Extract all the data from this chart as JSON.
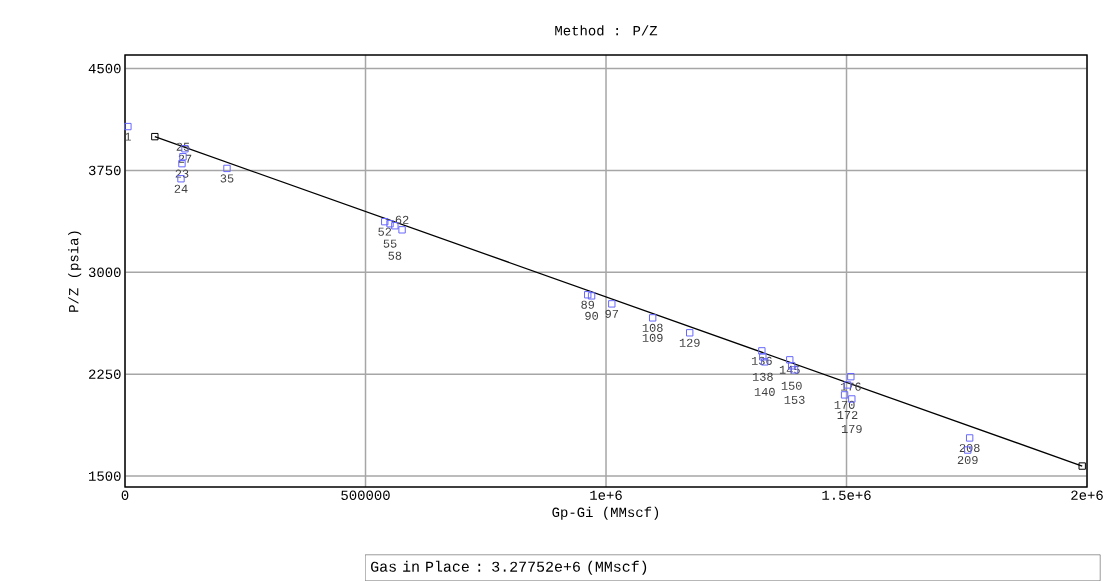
{
  "chart_data": {
    "type": "scatter",
    "title": "Method : P/Z",
    "xlabel": "Gp-Gi (MMscf)",
    "ylabel": "P/Z (psia)",
    "xlim": [
      0,
      2000000
    ],
    "ylim": [
      1420,
      4600
    ],
    "xticks": [
      0,
      500000,
      {
        "value": 1000000,
        "label": "1e+6"
      },
      {
        "value": 1500000,
        "label": "1.5e+6"
      },
      {
        "value": 2000000,
        "label": "2e+6"
      }
    ],
    "yticks": [
      1500,
      2250,
      3000,
      3750,
      4500
    ],
    "grid": true,
    "marker": "square",
    "series": [
      {
        "color": "#6666ff",
        "x": [
          6000,
          116400,
          118400,
          120500,
          124700,
          212000,
          540000,
          551000,
          561000,
          576000,
          962000,
          970000,
          1012000,
          1097000,
          1174000,
          1324000,
          1326000,
          1330000,
          1382000,
          1386000,
          1392000,
          1496000,
          1502000,
          1509000,
          1511000,
          1752000,
          1756000
        ],
        "values": [
          4073,
          3689,
          3800,
          3851,
          3910,
          3765,
          3373,
          3358,
          3343,
          3313,
          2835,
          2827,
          2768,
          2665,
          2555,
          2422,
          2378,
          2341,
          2356,
          2312,
          2282,
          2098,
          2171,
          2232,
          2068,
          1692,
          1781
        ]
      },
      {
        "type": "line",
        "color": "#000000",
        "x": [
          62000,
          1990000
        ],
        "values": [
          3999,
          1574
        ]
      }
    ],
    "annotations": [
      {
        "text": "1",
        "x": 6000,
        "y": 4073
      },
      {
        "text": "24",
        "x": 116400,
        "y": 3689
      },
      {
        "text": "23",
        "x": 118400,
        "y": 3800
      },
      {
        "text": "25",
        "x": 120500,
        "y": 3851
      },
      {
        "text": "27",
        "x": 124700,
        "y": 3910
      },
      {
        "text": "35",
        "x": 212000,
        "y": 3765
      },
      {
        "text": "52",
        "x": 540000,
        "y": 3373
      },
      {
        "text": "55",
        "x": 551000,
        "y": 3358
      },
      {
        "text": "58",
        "x": 561000,
        "y": 3343
      },
      {
        "text": "62",
        "x": 576000,
        "y": 3313
      },
      {
        "text": "89",
        "x": 962000,
        "y": 2835
      },
      {
        "text": "90",
        "x": 970000,
        "y": 2827
      },
      {
        "text": "97",
        "x": 1012000,
        "y": 2768
      },
      {
        "text": "108",
        "x": 1097000,
        "y": 2665
      },
      {
        "text": "109",
        "x": 1097000,
        "y": 2665
      },
      {
        "text": "129",
        "x": 1174000,
        "y": 2555
      },
      {
        "text": "136",
        "x": 1324000,
        "y": 2422
      },
      {
        "text": "138",
        "x": 1326000,
        "y": 2378
      },
      {
        "text": "140",
        "x": 1330000,
        "y": 2341
      },
      {
        "text": "145",
        "x": 1382000,
        "y": 2356
      },
      {
        "text": "150",
        "x": 1386000,
        "y": 2312
      },
      {
        "text": "153",
        "x": 1392000,
        "y": 2282
      },
      {
        "text": "170",
        "x": 1496000,
        "y": 2098
      },
      {
        "text": "172",
        "x": 1502000,
        "y": 2171
      },
      {
        "text": "176",
        "x": 1509000,
        "y": 2232
      },
      {
        "text": "179",
        "x": 1511000,
        "y": 2068
      },
      {
        "text": "209",
        "x": 1752000,
        "y": 1692
      },
      {
        "text": "208",
        "x": 1756000,
        "y": 1781
      },
      "Gas in Place : 3.27752e+6  (MMscf)"
    ]
  }
}
